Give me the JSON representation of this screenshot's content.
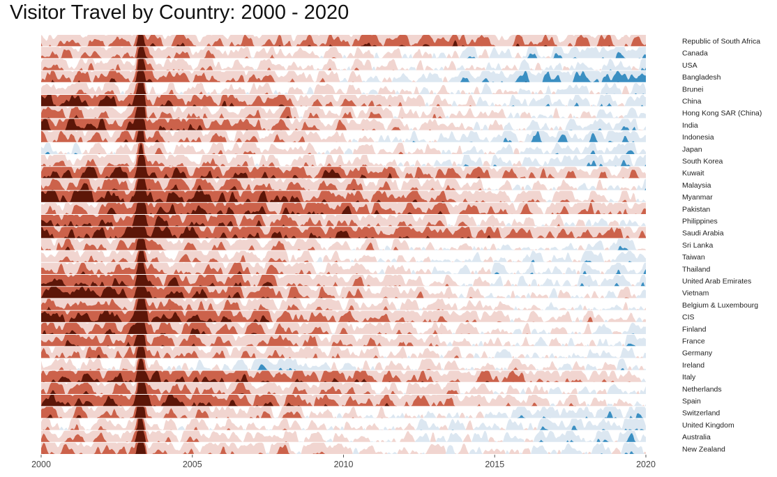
{
  "chart_data": {
    "type": "area",
    "subtype": "horizon",
    "title": "Visitor Travel by Country: 2000 - 2020",
    "xlabel": "",
    "ylabel": "",
    "xlim": [
      2000,
      2020
    ],
    "xticks": [
      "2000",
      "2005",
      "2010",
      "2015",
      "2020"
    ],
    "grid": false,
    "legend": "none",
    "colors": {
      "neg_band_1": "#f1d5d0",
      "neg_band_2": "#cc624b",
      "neg_band_3": "#5c1608",
      "pos_band_1": "#dce7f1",
      "pos_band_2": "#3b8fc2",
      "pos_band_3": "#0b2d57"
    },
    "series_note_trend": "Approximate long-run level per series (negative = red bands, positive = blue bands), sampled at 2000, 2004, 2008, 2012, 2016, 2020.",
    "series": [
      {
        "name": "Republic of South Africa",
        "trend": [
          -1.2,
          -1.4,
          -1.3,
          -1.6,
          -1.4,
          -1.1
        ]
      },
      {
        "name": "Canada",
        "trend": [
          -1.1,
          -0.9,
          -0.6,
          -0.3,
          0.4,
          1.1
        ]
      },
      {
        "name": "USA",
        "trend": [
          -0.9,
          -0.8,
          -0.5,
          -0.3,
          0.1,
          0.5
        ]
      },
      {
        "name": "Bangladesh",
        "trend": [
          -1.6,
          -1.5,
          -1.0,
          0.2,
          1.2,
          1.4
        ]
      },
      {
        "name": "Brunei",
        "trend": [
          -0.7,
          -0.6,
          -0.4,
          -0.1,
          0.2,
          0.4
        ]
      },
      {
        "name": "China",
        "trend": [
          -2.4,
          -2.0,
          -1.5,
          -0.7,
          0.3,
          0.6
        ]
      },
      {
        "name": "Hong Kong SAR (China)",
        "trend": [
          -1.4,
          -1.2,
          -1.0,
          -0.6,
          -0.2,
          0.3
        ]
      },
      {
        "name": "India",
        "trend": [
          -2.4,
          -2.1,
          -1.5,
          -0.6,
          0.2,
          0.6
        ]
      },
      {
        "name": "Indonesia",
        "trend": [
          -1.5,
          -1.3,
          -0.9,
          0.2,
          1.0,
          0.9
        ]
      },
      {
        "name": "Japan",
        "trend": [
          0.3,
          -0.6,
          -0.6,
          -0.3,
          0.4,
          0.7
        ]
      },
      {
        "name": "South Korea",
        "trend": [
          -1.1,
          -1.0,
          -0.7,
          -0.1,
          0.6,
          1.0
        ]
      },
      {
        "name": "Kuwait",
        "trend": [
          -2.1,
          -2.2,
          -2.0,
          -1.5,
          -1.2,
          -0.8
        ]
      },
      {
        "name": "Malaysia",
        "trend": [
          -1.7,
          -1.7,
          -1.4,
          -0.9,
          -0.4,
          0.2
        ]
      },
      {
        "name": "Myanmar",
        "trend": [
          -2.6,
          -2.4,
          -2.0,
          -1.3,
          -0.6,
          -0.4
        ]
      },
      {
        "name": "Pakistan",
        "trend": [
          -0.8,
          -2.2,
          -1.9,
          -1.6,
          -1.1,
          -1.0
        ]
      },
      {
        "name": "Philippines",
        "trend": [
          -2.2,
          -2.0,
          -1.6,
          -0.9,
          -0.3,
          0.4
        ]
      },
      {
        "name": "Saudi Arabia",
        "trend": [
          -2.3,
          -2.3,
          -2.1,
          -1.8,
          -1.5,
          -1.3
        ]
      },
      {
        "name": "Sri Lanka",
        "trend": [
          -1.4,
          -1.2,
          -0.8,
          -0.4,
          0.2,
          0.5
        ]
      },
      {
        "name": "Taiwan",
        "trend": [
          -1.0,
          -0.9,
          -0.6,
          -0.2,
          0.3,
          0.6
        ]
      },
      {
        "name": "Thailand",
        "trend": [
          -1.5,
          -1.3,
          -0.9,
          -0.3,
          0.3,
          0.7
        ]
      },
      {
        "name": "United Arab Emirates",
        "trend": [
          -2.3,
          -2.0,
          -1.4,
          -0.6,
          0.2,
          0.6
        ]
      },
      {
        "name": "Vietnam",
        "trend": [
          -2.7,
          -2.3,
          -1.5,
          -0.8,
          -0.2,
          0.0
        ]
      },
      {
        "name": "Belgium & Luxembourg",
        "trend": [
          -1.4,
          -1.3,
          -1.0,
          -0.6,
          -0.1,
          0.2
        ]
      },
      {
        "name": "CIS",
        "trend": [
          -2.5,
          -2.2,
          -1.6,
          -1.0,
          -0.4,
          -0.5
        ]
      },
      {
        "name": "Finland",
        "trend": [
          -1.8,
          -1.7,
          -1.3,
          -0.7,
          -0.1,
          0.3
        ]
      },
      {
        "name": "France",
        "trend": [
          -1.7,
          -1.6,
          -1.3,
          -0.8,
          -0.2,
          0.4
        ]
      },
      {
        "name": "Germany",
        "trend": [
          -1.4,
          -1.3,
          -1.0,
          -0.5,
          0.1,
          0.7
        ]
      },
      {
        "name": "Ireland",
        "trend": [
          -0.6,
          -0.3,
          0.7,
          -0.4,
          -0.5,
          0.3
        ]
      },
      {
        "name": "Italy",
        "trend": [
          -2.2,
          -2.1,
          -1.8,
          -1.4,
          -1.2,
          -0.5
        ]
      },
      {
        "name": "Netherlands",
        "trend": [
          -1.5,
          -1.4,
          -1.1,
          -0.7,
          -0.2,
          0.3
        ]
      },
      {
        "name": "Spain",
        "trend": [
          -2.4,
          -2.2,
          -1.8,
          -1.3,
          -0.7,
          -0.1
        ]
      },
      {
        "name": "Switzerland",
        "trend": [
          -1.4,
          -1.2,
          -0.8,
          -0.2,
          0.4,
          0.9
        ]
      },
      {
        "name": "United Kingdom",
        "trend": [
          -0.6,
          -0.5,
          -0.3,
          0.1,
          0.5,
          0.8
        ]
      },
      {
        "name": "Australia",
        "trend": [
          -1.0,
          -0.9,
          -0.6,
          -0.1,
          0.4,
          0.8
        ]
      },
      {
        "name": "New Zealand",
        "trend": [
          -1.2,
          -1.1,
          -0.8,
          -0.3,
          0.1,
          0.5
        ]
      }
    ],
    "annotations": [
      {
        "note": "sharp negative spike across all series",
        "x": 2003.3
      }
    ]
  }
}
